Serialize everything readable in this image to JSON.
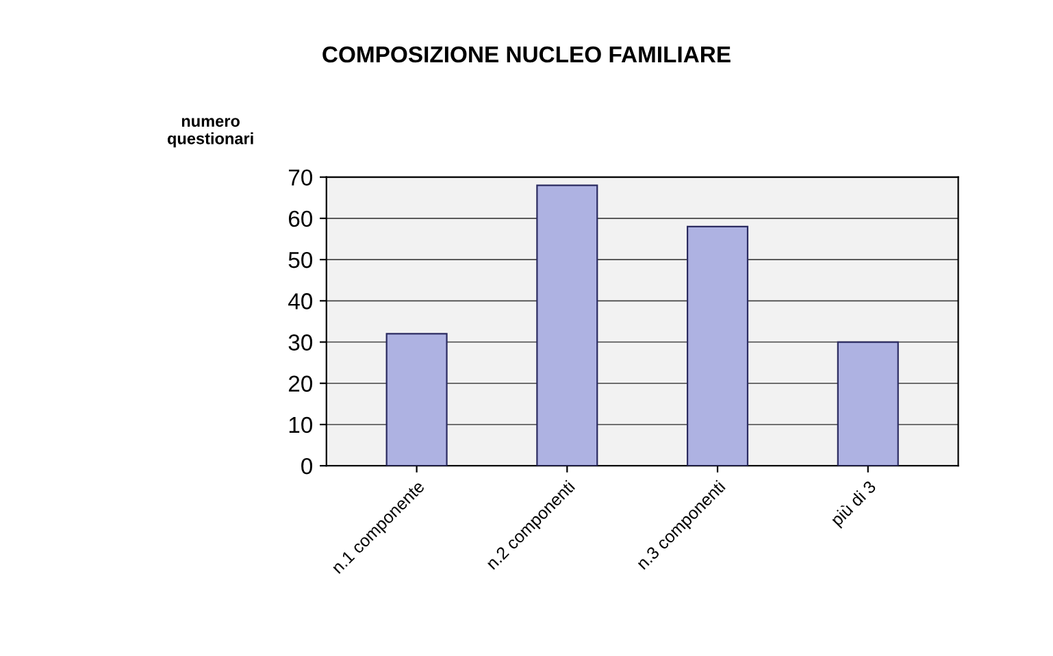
{
  "chart_data": {
    "type": "bar",
    "title": "COMPOSIZIONE NUCLEO FAMILIARE",
    "ylabel": "numero\nquestionari",
    "categories": [
      "n.1 componente",
      "n.2 componenti",
      "n.3 componenti",
      "più di 3"
    ],
    "values": [
      32,
      68,
      58,
      30
    ],
    "color": "#aeb2e2",
    "ylim": [
      0,
      70
    ],
    "yticks": [
      0,
      10,
      20,
      30,
      40,
      50,
      60,
      70
    ],
    "grid": "y"
  }
}
